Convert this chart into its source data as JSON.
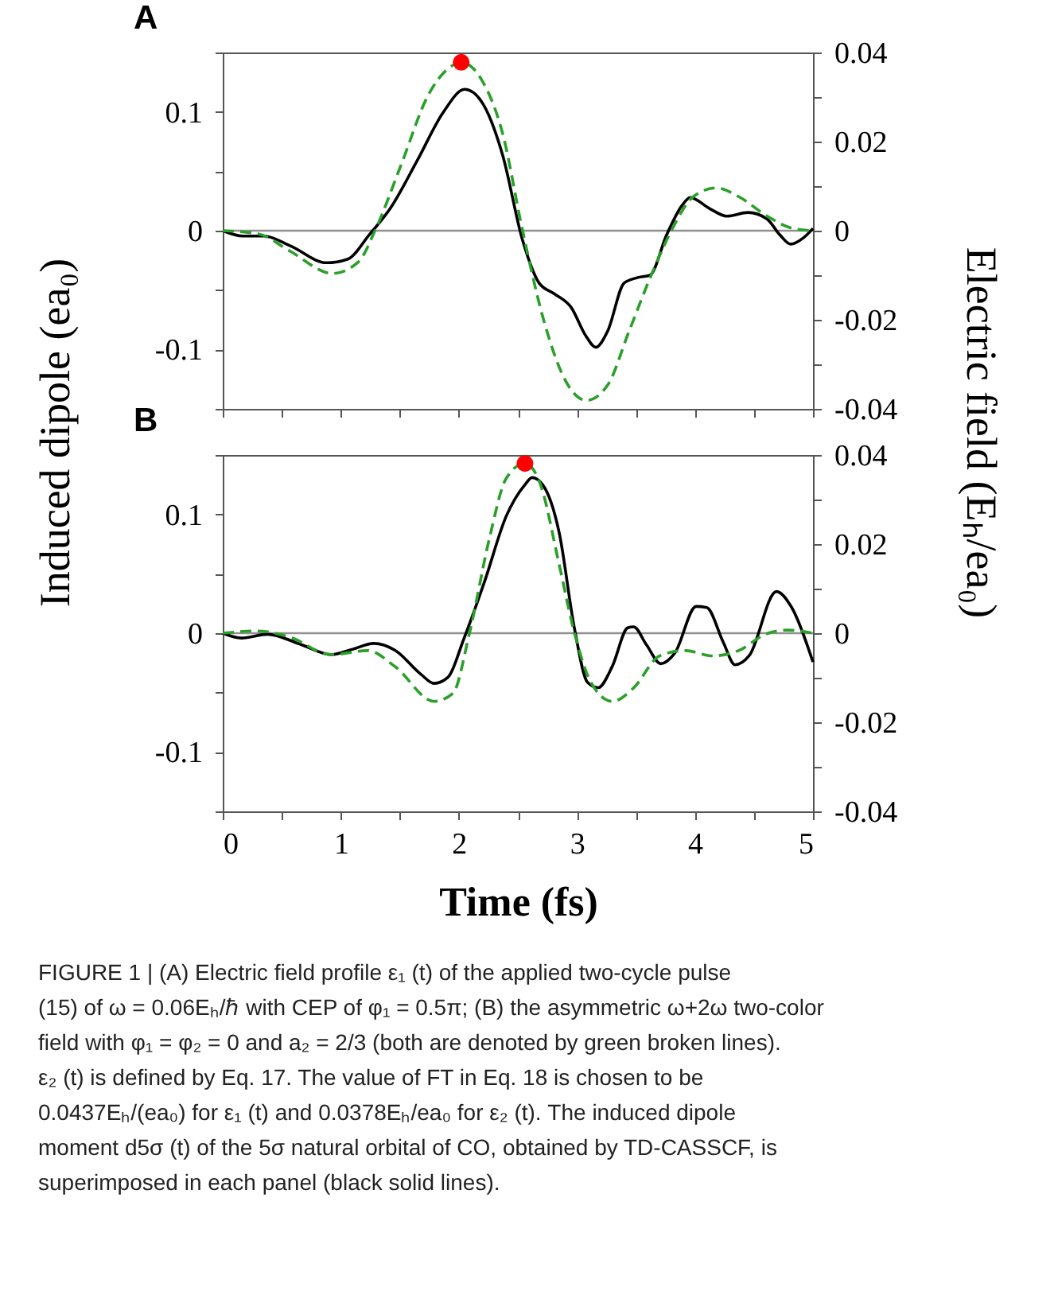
{
  "chart_data": [
    {
      "type": "line",
      "title": "A",
      "ylabel": "Induced dipole (ea₀)",
      "y2label": "Electric field (Eₕ/ea₀)",
      "xlim": [
        0,
        5
      ],
      "xticks": [
        {
          "value": 0,
          "label": null
        },
        {
          "value": 0.5,
          "label": null
        },
        {
          "value": 1,
          "label": null
        },
        {
          "value": 1.5,
          "label": null
        },
        {
          "value": 2,
          "label": null
        },
        {
          "value": 2.5,
          "label": null
        },
        {
          "value": 3,
          "label": null
        },
        {
          "value": 3.5,
          "label": null
        },
        {
          "value": 4,
          "label": null
        },
        {
          "value": 4.5,
          "label": null
        },
        {
          "value": 5,
          "label": null
        }
      ],
      "ylim": [
        -0.15,
        0.15
      ],
      "yticks": [
        {
          "value": -0.15,
          "label": null
        },
        -0.1,
        {
          "value": -0.05,
          "label": null
        },
        0,
        {
          "value": 0.05,
          "label": null
        },
        0.1,
        {
          "value": 0.15,
          "label": null
        }
      ],
      "y2lim": [
        -0.04,
        0.04
      ],
      "y2ticks": [
        -0.04,
        {
          "value": -0.03,
          "label": null
        },
        -0.02,
        {
          "value": -0.01,
          "label": null
        },
        0,
        {
          "value": 0.01,
          "label": null
        },
        0.02,
        {
          "value": 0.03,
          "label": null
        },
        0.04
      ],
      "tick_labels": "y",
      "ref_lines": [
        {
          "axis": "y",
          "value": 0,
          "color": "#909090"
        }
      ],
      "series": [
        {
          "type": "line",
          "axis": "y",
          "color": "#000000",
          "line_style": "solid",
          "x": [
            0,
            0.17,
            0.35,
            0.57,
            0.88,
            1.06,
            1.24,
            1.42,
            1.65,
            1.87,
            2.05,
            2.19,
            2.37,
            2.54,
            2.68,
            2.81,
            2.95,
            3.08,
            3.16,
            3.26,
            3.4,
            3.51,
            3.62,
            3.76,
            3.89,
            3.96,
            4.12,
            4.27,
            4.45,
            4.61,
            4.72,
            4.81,
            4.92,
            5
          ],
          "values": [
            0,
            -0.0045,
            -0.0045,
            -0.0126,
            -0.027,
            -0.0239,
            -0.0036,
            0.0189,
            0.0595,
            0.1,
            0.119,
            0.109,
            0.064,
            -0.0081,
            -0.0441,
            -0.0532,
            -0.0644,
            -0.0892,
            -0.0982,
            -0.0847,
            -0.0441,
            -0.0396,
            -0.0374,
            -0.0036,
            0.0212,
            0.0279,
            0.0189,
            0.0122,
            0.0153,
            0.0099,
            -0.0036,
            -0.0113,
            -0.0059,
            0.0018
          ]
        },
        {
          "type": "line",
          "axis": "y2",
          "color": "#2aa02a",
          "line_style": "dashed",
          "x": [
            0,
            0.3,
            0.57,
            0.93,
            1.15,
            1.29,
            1.51,
            1.74,
            1.92,
            2.02,
            2.19,
            2.37,
            2.54,
            2.72,
            2.9,
            3.08,
            3.26,
            3.44,
            3.62,
            3.8,
            3.98,
            4.18,
            4.38,
            4.61,
            4.83,
            5
          ],
          "values": [
            0,
            -0.0007,
            -0.0046,
            -0.0096,
            -0.007,
            0,
            0.0147,
            0.0304,
            0.0366,
            0.0378,
            0.034,
            0.0219,
            0,
            -0.0202,
            -0.0335,
            -0.0381,
            -0.0347,
            -0.0227,
            -0.0106,
            0,
            0.0075,
            0.0096,
            0.0075,
            0.0033,
            0.0005,
            0
          ]
        },
        {
          "type": "scatter",
          "axis": "y2",
          "color": "#ff0000",
          "marker": "circle",
          "x": [
            2.02
          ],
          "values": [
            0.0378
          ]
        }
      ]
    },
    {
      "type": "line",
      "title": "B",
      "xlabel": "Time (fs)",
      "xlim": [
        0,
        5
      ],
      "xticks": [
        0,
        {
          "value": 0.5,
          "label": null
        },
        1,
        {
          "value": 1.5,
          "label": null
        },
        2,
        {
          "value": 2.5,
          "label": null
        },
        3,
        {
          "value": 3.5,
          "label": null
        },
        4,
        {
          "value": 4.5,
          "label": null
        },
        5
      ],
      "ylim": [
        -0.15,
        0.15
      ],
      "yticks": [
        {
          "value": -0.15,
          "label": null
        },
        -0.1,
        {
          "value": -0.05,
          "label": null
        },
        0,
        {
          "value": 0.05,
          "label": null
        },
        0.1,
        {
          "value": 0.15,
          "label": null
        }
      ],
      "y2lim": [
        -0.04,
        0.04
      ],
      "y2ticks": [
        -0.04,
        {
          "value": -0.03,
          "label": null
        },
        -0.02,
        {
          "value": -0.01,
          "label": null
        },
        0,
        {
          "value": 0.01,
          "label": null
        },
        0.02,
        {
          "value": 0.03,
          "label": null
        },
        0.04
      ],
      "ref_lines": [
        {
          "axis": "y",
          "value": 0,
          "color": "#909090"
        }
      ],
      "series": [
        {
          "type": "line",
          "axis": "y",
          "color": "#000000",
          "line_style": "solid",
          "x": [
            0,
            0.16,
            0.38,
            0.65,
            0.92,
            1.1,
            1.28,
            1.46,
            1.68,
            1.79,
            1.91,
            2.04,
            2.22,
            2.4,
            2.56,
            2.62,
            2.71,
            2.85,
            2.98,
            3.09,
            3.18,
            3.3,
            3.43,
            3.48,
            3.59,
            3.71,
            3.83,
            4.01,
            4.1,
            4.24,
            4.34,
            4.46,
            4.69,
            4.82,
            5
          ],
          "values": [
            0,
            -0.0041,
            -0.0009,
            -0.009,
            -0.018,
            -0.0135,
            -0.0086,
            -0.0144,
            -0.0347,
            -0.0423,
            -0.0369,
            -0.0054,
            0.0441,
            0.0982,
            0.125,
            0.131,
            0.125,
            0.0847,
            0.0036,
            -0.0414,
            -0.0459,
            -0.0279,
            0.0045,
            0.0054,
            -0.0099,
            -0.0257,
            -0.0167,
            0.0225,
            0.0216,
            -0.0077,
            -0.0266,
            -0.0189,
            0.0351,
            0.0216,
            -0.0243
          ]
        },
        {
          "type": "line",
          "axis": "y2",
          "color": "#2aa02a",
          "line_style": "dashed",
          "x": [
            0,
            0.29,
            0.56,
            0.92,
            1.23,
            1.46,
            1.79,
            1.95,
            2.09,
            2.26,
            2.4,
            2.56,
            2.69,
            2.85,
            2.98,
            3.12,
            3.3,
            3.48,
            3.7,
            3.92,
            4.15,
            4.37,
            4.6,
            4.78,
            5
          ],
          "values": [
            0,
            0.0005,
            -0.0008,
            -0.0048,
            -0.0039,
            -0.0075,
            -0.0153,
            -0.0135,
            0,
            0.0214,
            0.0347,
            0.0381,
            0.0335,
            0.0154,
            0,
            -0.0111,
            -0.0153,
            -0.0123,
            -0.0051,
            -0.0039,
            -0.0051,
            -0.0039,
            -0.0002,
            0.0007,
            0
          ]
        },
        {
          "type": "scatter",
          "axis": "y2",
          "color": "#ff0000",
          "marker": "circle",
          "x": [
            2.56
          ],
          "values": [
            0.0381
          ]
        }
      ],
      "annotations": [
        "FIGURE 1 | (A) Electric field profile ε₁ (t) of the applied two-cycle pulse (15) of ω = 0.06Eₕ/ℏ with CEP of φ₁ = 0.5π; (B) the asymmetric ω+2ω two-color field with φ₁ = φ₂ = 0 and a₂ = 2/3 (both are denoted by green broken lines). ε₂ (t) is defined by Eq. 17. The value of FT in Eq. 18 is chosen to be 0.0437Eₕ/(ea₀) for ε₁ (t) and 0.0378Eₕ/ea₀ for ε₂ (t). The induced dipole moment d5σ (t) of the 5σ natural orbital of CO, obtained by TD-CASSCF, is superimposed in each panel (black solid lines)."
      ]
    }
  ]
}
